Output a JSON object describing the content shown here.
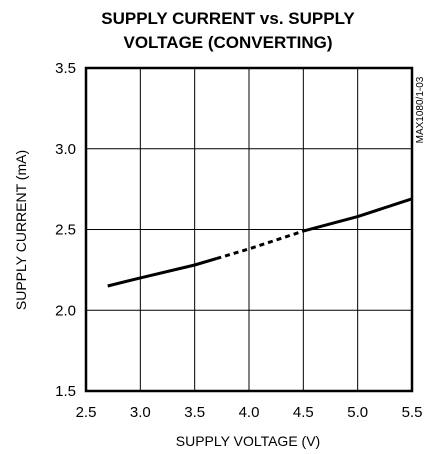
{
  "chart_data": {
    "type": "line",
    "title": "SUPPLY CURRENT vs. SUPPLY VOLTAGE (CONVERTING)",
    "title_lines": [
      "SUPPLY CURRENT vs. SUPPLY",
      "VOLTAGE (CONVERTING)"
    ],
    "xlabel": "SUPPLY VOLTAGE (V)",
    "ylabel": "SUPPLY CURRENT (mA)",
    "side_note": "MAX1080/1-03",
    "xlim": [
      2.5,
      5.5
    ],
    "ylim": [
      1.5,
      3.5
    ],
    "x_ticks": [
      2.5,
      3.0,
      3.5,
      4.0,
      4.5,
      5.0,
      5.5
    ],
    "x_tick_labels": [
      "2.5",
      "3.0",
      "3.5",
      "4.0",
      "4.5",
      "5.0",
      "5.5"
    ],
    "y_ticks": [
      1.5,
      2.0,
      2.5,
      3.0,
      3.5
    ],
    "y_tick_labels": [
      "1.5",
      "2.0",
      "2.5",
      "3.0",
      "3.5"
    ],
    "grid": true,
    "series": [
      {
        "style": "solid",
        "x": [
          2.7,
          3.0,
          3.5,
          3.7
        ],
        "y": [
          2.15,
          2.2,
          2.28,
          2.32
        ]
      },
      {
        "style": "dashed",
        "x": [
          3.7,
          4.0,
          4.5
        ],
        "y": [
          2.32,
          2.38,
          2.49
        ]
      },
      {
        "style": "solid",
        "x": [
          4.5,
          5.0,
          5.5
        ],
        "y": [
          2.49,
          2.58,
          2.69
        ]
      }
    ]
  }
}
